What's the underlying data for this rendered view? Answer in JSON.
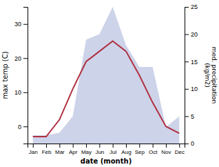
{
  "chart_data": {
    "type": "line",
    "categories": [
      "Jan",
      "Feb",
      "Mar",
      "Apr",
      "May",
      "Jun",
      "Jul",
      "Aug",
      "Sep",
      "Oct",
      "Nov",
      "Dec"
    ],
    "xlabel": "date (month)",
    "ylabel": "max temp (C)",
    "y2label": "med. precipitation\n(kg/m2)",
    "ylim": [
      -5,
      35
    ],
    "yticks": [
      0,
      10,
      20,
      30
    ],
    "y2lim": [
      0,
      25
    ],
    "y2ticks": [
      0,
      5,
      10,
      15,
      20,
      25
    ],
    "grid": false,
    "series": [
      {
        "type": "area",
        "axis": "y2",
        "color": "#b8c0e0",
        "values": [
          1.5,
          1.5,
          2.0,
          5.0,
          19.0,
          20.0,
          25.0,
          18.0,
          14.0,
          14.0,
          3.0,
          5.0
        ]
      },
      {
        "type": "line",
        "color": "#b03040",
        "values": [
          -3.0,
          -3.0,
          2.0,
          11.0,
          19.0,
          22.0,
          25.0,
          22.0,
          15.0,
          7.0,
          0.0,
          -2.0
        ]
      }
    ]
  }
}
